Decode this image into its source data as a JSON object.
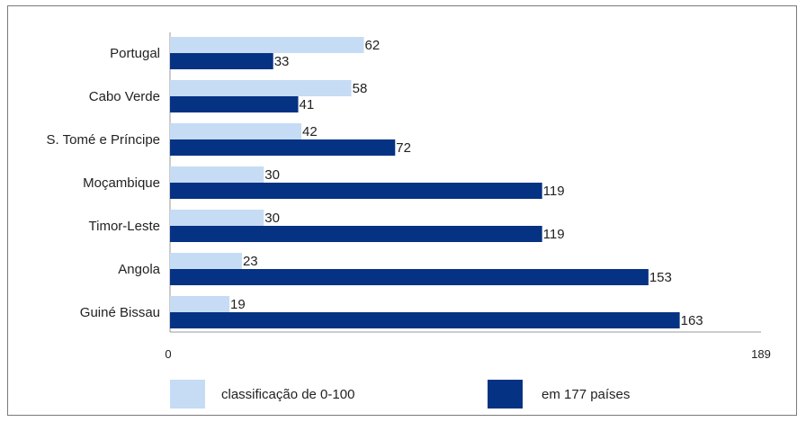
{
  "chart_data": {
    "type": "bar",
    "orientation": "horizontal",
    "categories": [
      "Portugal",
      "Cabo Verde",
      "S. Tomé e Príncipe",
      "Moçambique",
      "Timor-Leste",
      "Angola",
      "Guiné Bissau"
    ],
    "series": [
      {
        "name": "classificação de 0-100",
        "values": [
          62,
          58,
          42,
          30,
          30,
          23,
          19
        ],
        "color": "#c5dcf4"
      },
      {
        "name": "em 177 países",
        "values": [
          33,
          41,
          72,
          119,
          119,
          153,
          163
        ],
        "color": "#063284"
      }
    ],
    "xlim": [
      0,
      189
    ],
    "x_ticks": [
      "0",
      "189"
    ],
    "grid": false,
    "legend_position": "bottom"
  }
}
